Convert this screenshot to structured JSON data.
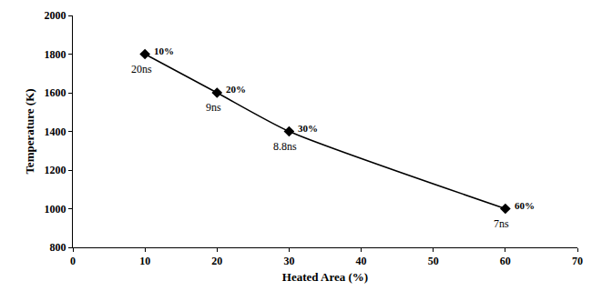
{
  "chart_data": {
    "type": "line",
    "x_label": "Heated Area (%)",
    "y_label": "Temperature (K)",
    "x": [
      10,
      20,
      30,
      60
    ],
    "values": [
      1800,
      1600,
      1400,
      1000
    ],
    "time_labels": [
      "20ns",
      "9ns",
      "8.8ns",
      "7ns"
    ],
    "area_labels": [
      "10%",
      "20%",
      "30%",
      "60%"
    ],
    "color": "#000000",
    "marker": "diamond",
    "line_style": "spline",
    "xlim": [
      0,
      70
    ],
    "xticks": [
      0,
      10,
      20,
      30,
      40,
      50,
      60,
      70
    ],
    "ylim": [
      800,
      2000
    ],
    "yticks": [
      800,
      1000,
      1200,
      1400,
      1600,
      1800,
      2000
    ],
    "grid": false
  }
}
